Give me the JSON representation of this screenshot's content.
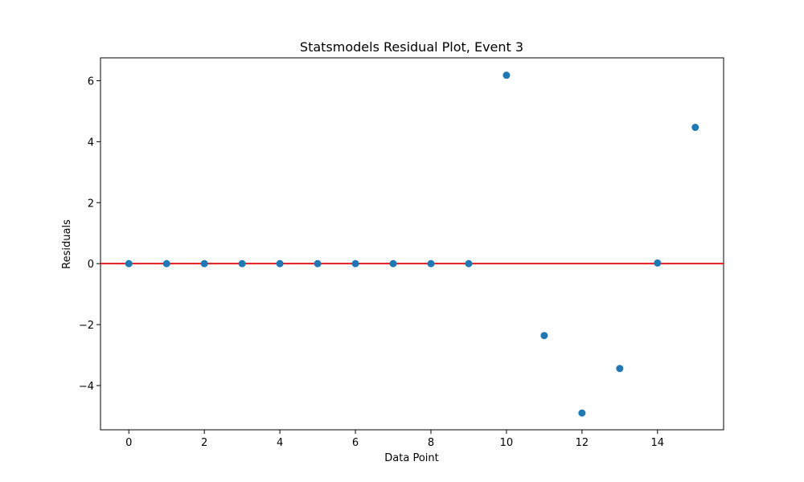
{
  "chart_data": {
    "type": "scatter",
    "title": "Statsmodels Residual Plot, Event 3",
    "xlabel": "Data Point",
    "ylabel": "Residuals",
    "xlim": [
      -0.75,
      15.75
    ],
    "ylim": [
      -5.45,
      6.75
    ],
    "xticks": [
      0,
      2,
      4,
      6,
      8,
      10,
      12,
      14
    ],
    "xtick_labels": [
      "0",
      "2",
      "4",
      "6",
      "8",
      "10",
      "12",
      "14"
    ],
    "yticks": [
      -4,
      -2,
      0,
      2,
      4,
      6
    ],
    "ytick_labels": [
      "−4",
      "−2",
      "0",
      "2",
      "4",
      "6"
    ],
    "grid": false,
    "series": [
      {
        "name": "Residuals",
        "x": [
          0,
          1,
          2,
          3,
          4,
          5,
          6,
          7,
          8,
          9,
          10,
          11,
          12,
          13,
          14,
          15
        ],
        "y": [
          0,
          0,
          0,
          0,
          0,
          0,
          0,
          0,
          0,
          0,
          6.18,
          -2.36,
          -4.9,
          -3.44,
          0.02,
          4.47
        ]
      }
    ],
    "reference_line": {
      "y": 0,
      "color": "#e41a1c"
    },
    "point_color": "#1f77b4"
  }
}
